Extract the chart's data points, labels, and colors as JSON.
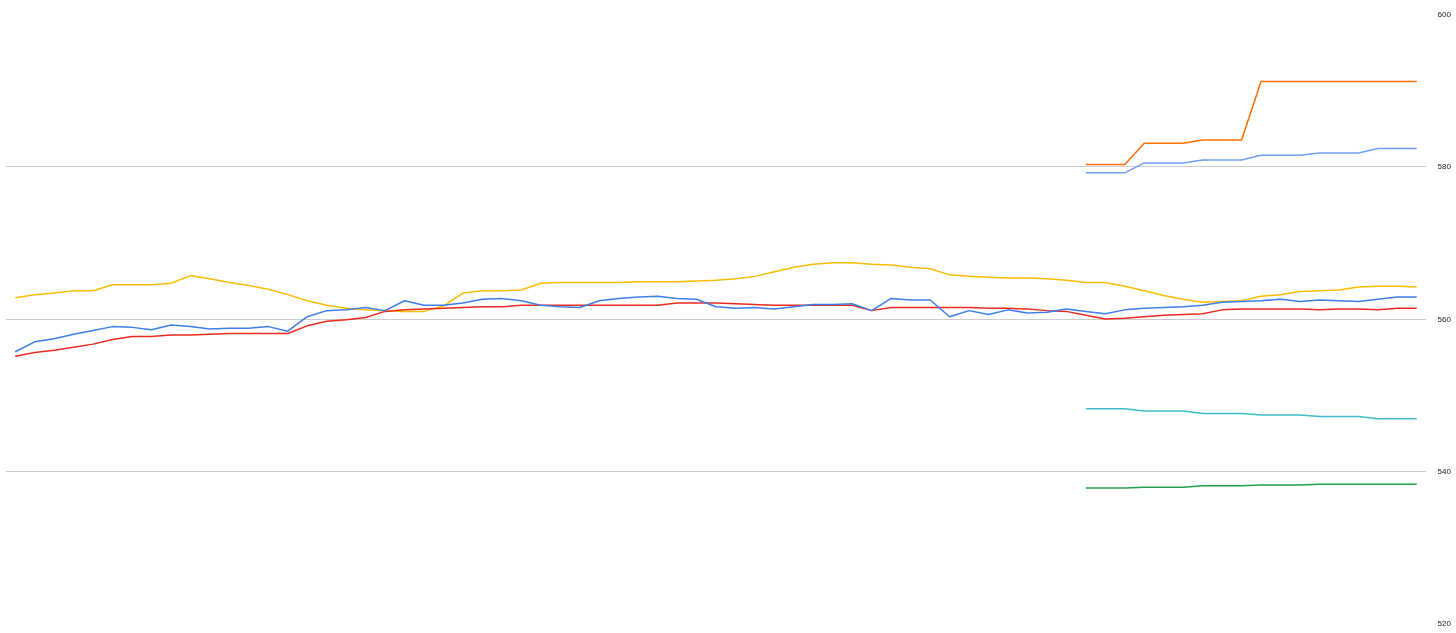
{
  "chart_data": {
    "type": "line",
    "categories": [
      null,
      null,
      null,
      null,
      null,
      null,
      null,
      null,
      null,
      null,
      null,
      null,
      null,
      null,
      null,
      null,
      null,
      null,
      null,
      null,
      null,
      null,
      null,
      null,
      null,
      null,
      null,
      null,
      null,
      null,
      null,
      null,
      null,
      null,
      null,
      null,
      null,
      null,
      null,
      null,
      null,
      null,
      null,
      null,
      null,
      null,
      null,
      null,
      null,
      null,
      null,
      null,
      null,
      null,
      null,
      null,
      null,
      null,
      null,
      null,
      null,
      null,
      null,
      null,
      null,
      null,
      null,
      null,
      null,
      null,
      null,
      null,
      null
    ],
    "ylim": [
      520,
      600
    ],
    "yticks": [
      520,
      540,
      560,
      580,
      600
    ],
    "grid": "y",
    "tick_labels": "y",
    "marker": "none",
    "line_style": "solid",
    "series": [
      {
        "color": "#fbbc04",
        "values": [
          562.8,
          563.2,
          563.4,
          563.7,
          563.7,
          564.5,
          564.5,
          564.5,
          564.7,
          565.7,
          565.3,
          564.8,
          564.4,
          563.9,
          563.2,
          562.4,
          561.8,
          561.4,
          561.2,
          561.1,
          561.0,
          561.0,
          561.7,
          563.4,
          563.7,
          563.7,
          563.8,
          564.7,
          564.8,
          564.8,
          564.8,
          564.8,
          564.9,
          564.9,
          564.9,
          565.0,
          565.1,
          565.3,
          565.6,
          566.2,
          566.8,
          567.2,
          567.4,
          567.4,
          567.2,
          567.1,
          566.8,
          566.6,
          565.8,
          565.6,
          565.5,
          565.4,
          565.4,
          565.3,
          565.1,
          564.8,
          564.8,
          564.3,
          563.7,
          563.1,
          562.6,
          562.2,
          562.3,
          562.4,
          563.0,
          563.2,
          563.6,
          563.7,
          563.8,
          564.2,
          564.3,
          564.3,
          564.2
        ]
      },
      {
        "color": "#ea2a1f",
        "values": [
          555.1,
          555.6,
          555.9,
          556.3,
          556.7,
          557.3,
          557.7,
          557.7,
          557.9,
          557.9,
          558.0,
          558.1,
          558.1,
          558.1,
          558.1,
          559.1,
          559.7,
          559.9,
          560.2,
          561.0,
          561.2,
          561.3,
          561.4,
          561.5,
          561.6,
          561.6,
          561.8,
          561.8,
          561.8,
          561.8,
          561.8,
          561.8,
          561.8,
          561.8,
          562.1,
          562.1,
          562.1,
          562.0,
          561.9,
          561.8,
          561.8,
          561.8,
          561.8,
          561.8,
          561.1,
          561.5,
          561.5,
          561.5,
          561.5,
          561.5,
          561.4,
          561.4,
          561.3,
          561.1,
          561.0,
          560.5,
          560.0,
          560.1,
          560.3,
          560.5,
          560.6,
          560.7,
          561.2,
          561.3,
          561.3,
          561.3,
          561.3,
          561.2,
          561.3,
          561.3,
          561.2,
          561.4,
          561.4
        ]
      },
      {
        "color": "#3d7ee8",
        "values": [
          555.7,
          557.0,
          557.4,
          558.0,
          558.5,
          559.0,
          558.9,
          558.6,
          559.2,
          559.0,
          558.7,
          558.8,
          558.8,
          559.0,
          558.4,
          560.3,
          561.1,
          561.2,
          561.5,
          561.1,
          562.4,
          561.8,
          561.8,
          562.1,
          562.6,
          562.7,
          562.4,
          561.8,
          561.6,
          561.5,
          562.4,
          562.7,
          562.9,
          563.0,
          562.7,
          562.6,
          561.6,
          561.4,
          561.5,
          561.3,
          561.6,
          561.9,
          561.9,
          562.0,
          561.1,
          562.7,
          562.5,
          562.5,
          560.3,
          561.1,
          560.6,
          561.2,
          560.8,
          560.9,
          561.3,
          561.0,
          560.7,
          561.2,
          561.4,
          561.5,
          561.6,
          561.8,
          562.2,
          562.3,
          562.4,
          562.6,
          562.3,
          562.5,
          562.4,
          562.3,
          562.6,
          562.9,
          562.9
        ]
      },
      {
        "color": "#ff6d01",
        "values": [
          null,
          null,
          null,
          null,
          null,
          null,
          null,
          null,
          null,
          null,
          null,
          null,
          null,
          null,
          null,
          null,
          null,
          null,
          null,
          null,
          null,
          null,
          null,
          null,
          null,
          null,
          null,
          null,
          null,
          null,
          null,
          null,
          null,
          null,
          null,
          null,
          null,
          null,
          null,
          null,
          null,
          null,
          null,
          null,
          null,
          null,
          null,
          null,
          null,
          null,
          null,
          null,
          null,
          null,
          null,
          580.3,
          580.3,
          580.3,
          583.1,
          583.1,
          583.1,
          583.5,
          583.5,
          583.5,
          591.2,
          591.2,
          591.2,
          591.2,
          591.2,
          591.2,
          591.2,
          591.2,
          591.2
        ]
      },
      {
        "color": "#6fa0f5",
        "values": [
          null,
          null,
          null,
          null,
          null,
          null,
          null,
          null,
          null,
          null,
          null,
          null,
          null,
          null,
          null,
          null,
          null,
          null,
          null,
          null,
          null,
          null,
          null,
          null,
          null,
          null,
          null,
          null,
          null,
          null,
          null,
          null,
          null,
          null,
          null,
          null,
          null,
          null,
          null,
          null,
          null,
          null,
          null,
          null,
          null,
          null,
          null,
          null,
          null,
          null,
          null,
          null,
          null,
          null,
          null,
          579.2,
          579.2,
          579.2,
          580.5,
          580.5,
          580.5,
          580.9,
          580.9,
          580.9,
          581.5,
          581.5,
          581.5,
          581.8,
          581.8,
          581.8,
          582.4,
          582.4,
          582.4
        ]
      },
      {
        "color": "#3fbac6",
        "values": [
          null,
          null,
          null,
          null,
          null,
          null,
          null,
          null,
          null,
          null,
          null,
          null,
          null,
          null,
          null,
          null,
          null,
          null,
          null,
          null,
          null,
          null,
          null,
          null,
          null,
          null,
          null,
          null,
          null,
          null,
          null,
          null,
          null,
          null,
          null,
          null,
          null,
          null,
          null,
          null,
          null,
          null,
          null,
          null,
          null,
          null,
          null,
          null,
          null,
          null,
          null,
          null,
          null,
          null,
          null,
          548.2,
          548.2,
          548.2,
          547.9,
          547.9,
          547.9,
          547.6,
          547.6,
          547.6,
          547.4,
          547.4,
          547.4,
          547.2,
          547.2,
          547.2,
          546.9,
          546.9,
          546.9
        ]
      },
      {
        "color": "#22a04b",
        "values": [
          null,
          null,
          null,
          null,
          null,
          null,
          null,
          null,
          null,
          null,
          null,
          null,
          null,
          null,
          null,
          null,
          null,
          null,
          null,
          null,
          null,
          null,
          null,
          null,
          null,
          null,
          null,
          null,
          null,
          null,
          null,
          null,
          null,
          null,
          null,
          null,
          null,
          null,
          null,
          null,
          null,
          null,
          null,
          null,
          null,
          null,
          null,
          null,
          null,
          null,
          null,
          null,
          null,
          null,
          null,
          537.8,
          537.8,
          537.8,
          537.9,
          537.9,
          537.9,
          538.1,
          538.1,
          538.1,
          538.2,
          538.2,
          538.2,
          538.3,
          538.3,
          538.3,
          538.3,
          538.3,
          538.3
        ]
      }
    ]
  }
}
